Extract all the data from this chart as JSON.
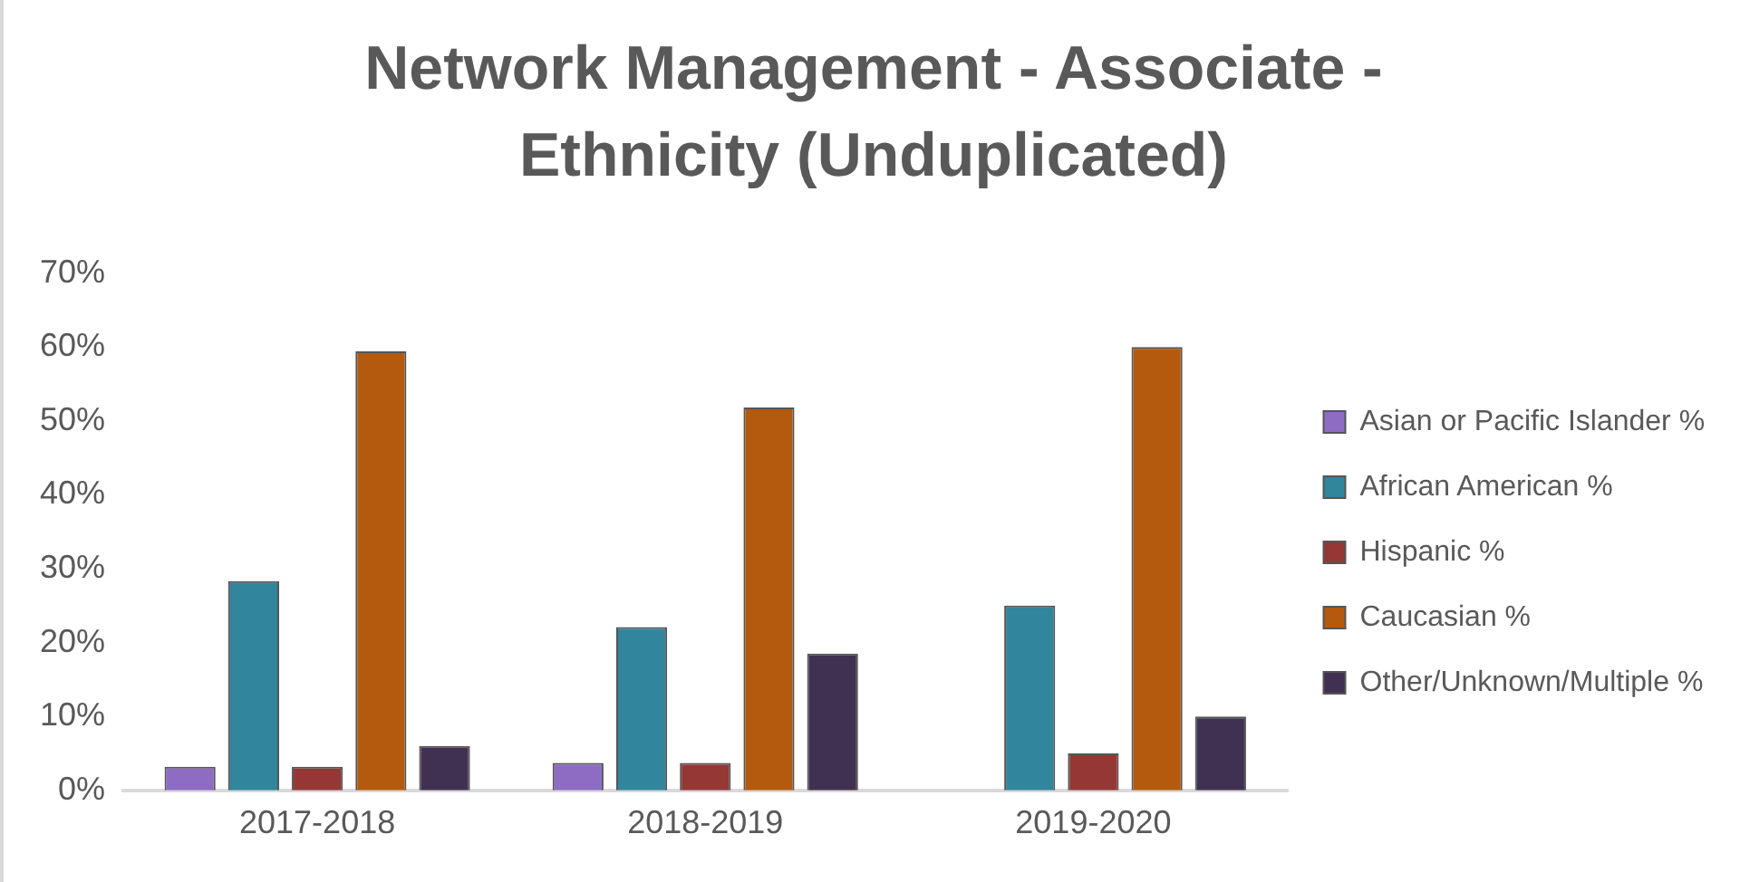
{
  "chart_data": {
    "type": "bar",
    "title": "Network Management - Associate - Ethnicity (Unduplicated)",
    "categories": [
      "2017-2018",
      "2018-2019",
      "2019-2020"
    ],
    "series": [
      {
        "name": "Asian or Pacific Islander %",
        "color": "#8e6cc4",
        "values": [
          3.2,
          3.7,
          0
        ]
      },
      {
        "name": "African American %",
        "color": "#31859c",
        "values": [
          28.3,
          22.1,
          25.0
        ]
      },
      {
        "name": "Hispanic %",
        "color": "#953735",
        "values": [
          3.2,
          3.7,
          5.0
        ]
      },
      {
        "name": "Caucasian %",
        "color": "#b35a0e",
        "values": [
          59.4,
          51.8,
          60.0
        ]
      },
      {
        "name": "Other/Unknown/Multiple %",
        "color": "#403152",
        "values": [
          6.0,
          18.5,
          10.0
        ]
      }
    ],
    "ylim": [
      0,
      70
    ],
    "yticks": [
      {
        "value": 0,
        "label": "0%"
      },
      {
        "value": 10,
        "label": "10%"
      },
      {
        "value": 20,
        "label": "20%"
      },
      {
        "value": 30,
        "label": "30%"
      },
      {
        "value": 40,
        "label": "40%"
      },
      {
        "value": 50,
        "label": "50%"
      },
      {
        "value": 60,
        "label": "60%"
      },
      {
        "value": 70,
        "label": "70%"
      }
    ],
    "grid": false,
    "legend": "right"
  }
}
